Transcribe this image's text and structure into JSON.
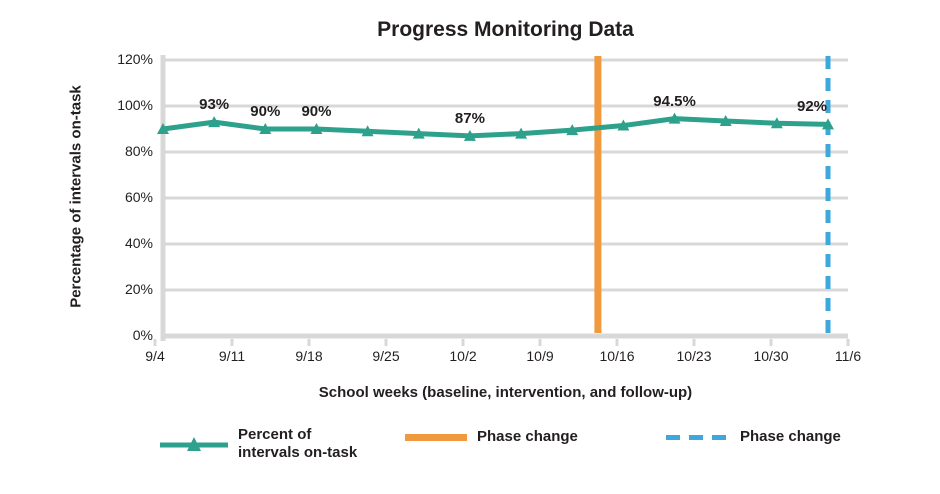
{
  "title": "Progress Monitoring Data",
  "chart_data": {
    "type": "line",
    "title": "Progress Monitoring Data",
    "xlabel": "School weeks (baseline, intervention, and follow-up)",
    "ylabel": "Percentage of intervals on-task",
    "ylim": [
      0,
      120
    ],
    "grid": true,
    "legend_position": "bottom",
    "y_tick_labels": [
      "120%",
      "100%",
      "80%",
      "60%",
      "40%",
      "20%",
      "0%"
    ],
    "x_tick_labels": [
      "9/4",
      "9/11",
      "9/18",
      "9/25",
      "10/2",
      "10/9",
      "10/16",
      "10/23",
      "10/30",
      "11/6"
    ],
    "series": [
      {
        "name": "Percent of intervals on-task",
        "color": "#2da18c",
        "marker": "triangle",
        "values": [
          90,
          93,
          90,
          90,
          89,
          88,
          87,
          88,
          89.5,
          91.5,
          94.5,
          93.5,
          92.5,
          92
        ]
      }
    ],
    "point_labels": [
      {
        "index": 1,
        "text": "93%"
      },
      {
        "index": 2,
        "text": "90%"
      },
      {
        "index": 3,
        "text": "90%"
      },
      {
        "index": 6,
        "text": "87%"
      },
      {
        "index": 10,
        "text": "94.5%"
      },
      {
        "index": 13,
        "text": "92%"
      }
    ],
    "phase_lines": [
      {
        "x_fraction": 0.654,
        "color": "#f0993e",
        "style": "solid",
        "label": "Phase change"
      },
      {
        "x_fraction": 1.0,
        "color": "#3ea7dc",
        "style": "dashed",
        "label": "Phase change"
      }
    ]
  },
  "legend": {
    "series_label_line1": "Percent of",
    "series_label_line2": "intervals on-task",
    "phase1_label": "Phase change",
    "phase2_label": "Phase change"
  },
  "colors": {
    "series_teal": "#2da18c",
    "phase_orange": "#f0993e",
    "phase_blue": "#3ea7dc",
    "gridline_gray": "#d8d8d8",
    "text": "#231f20"
  }
}
